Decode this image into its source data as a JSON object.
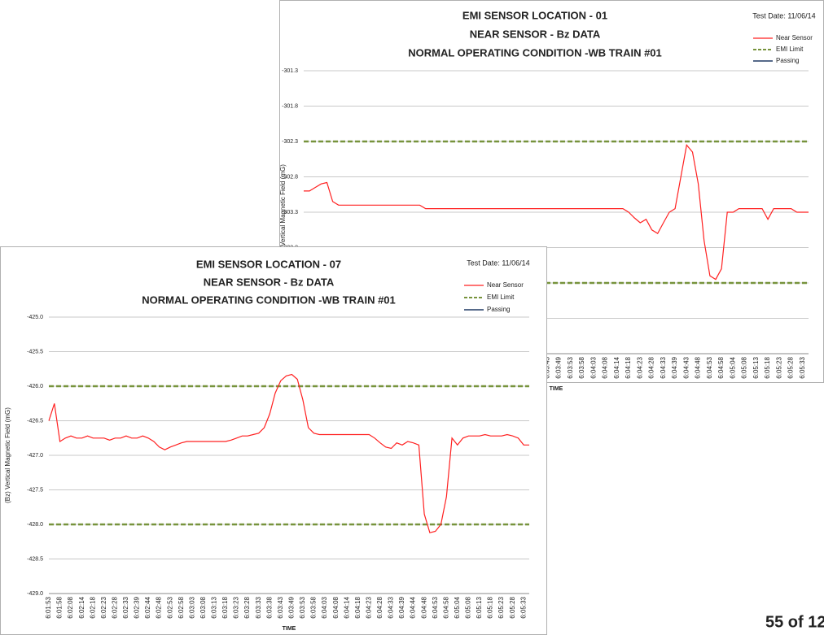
{
  "page_number": "55 of 12",
  "chart_data": [
    {
      "type": "line",
      "title": [
        "EMI SENSOR LOCATION - 01",
        "NEAR SENSOR - Bz DATA",
        "NORMAL OPERATING CONDITION -WB TRAIN #01"
      ],
      "test_date": "Test Date: 11/06/14",
      "y_label": "(Bz) Vertical Magnetic Field (mG)",
      "x_label": "TIME",
      "categories": [
        "6:01:53",
        null,
        "6:01:58",
        null,
        "6:02:08",
        null,
        "6:02:14",
        null,
        "6:02:18",
        null,
        "6:02:23",
        null,
        "6:02:28",
        null,
        "6:02:33",
        null,
        "6:02:39",
        null,
        "6:02:44",
        null,
        "6:02:48",
        null,
        "6:02:53",
        null,
        "6:02:58",
        null,
        "6:03:03",
        null,
        "6:03:08",
        null,
        "6:03:13",
        null,
        "6:03:18",
        null,
        "6:03:23",
        null,
        "6:03:28",
        null,
        "6:03:33",
        null,
        "6:03:38",
        null,
        "6:03:43",
        null,
        "6:03:49",
        null,
        "6:03:53",
        null,
        "6:03:58",
        null,
        "6:04:03",
        null,
        "6:04:08",
        null,
        "6:04:14",
        null,
        "6:04:18",
        null,
        "6:04:23",
        null,
        "6:04:28",
        null,
        "6:04:33",
        null,
        "6:04:39",
        null,
        "6:04:43",
        null,
        "6:04:48",
        null,
        "6:04:53",
        null,
        "6:04:58",
        null,
        "6:05:04",
        null,
        "6:05:08",
        null,
        "6:05:13",
        null,
        "6:05:18",
        null,
        "6:05:23",
        null,
        "6:05:28",
        null,
        "6:05:33",
        null
      ],
      "series": [
        {
          "name": "Near Sensor",
          "color": "#ff2020",
          "values": [
            -303.0,
            -303.0,
            -302.95,
            -302.9,
            -302.88,
            -303.15,
            -303.2,
            -303.2,
            -303.2,
            -303.2,
            -303.2,
            -303.2,
            -303.2,
            -303.2,
            -303.2,
            -303.2,
            -303.2,
            -303.2,
            -303.2,
            -303.2,
            -303.2,
            -303.25,
            -303.25,
            -303.25,
            -303.25,
            -303.25,
            -303.25,
            -303.25,
            -303.25,
            -303.25,
            -303.25,
            -303.25,
            -303.25,
            -303.25,
            -303.25,
            -303.25,
            -303.25,
            -303.25,
            -303.25,
            -303.25,
            -303.25,
            -303.25,
            -303.25,
            -303.25,
            -303.25,
            -303.25,
            -303.25,
            -303.25,
            -303.25,
            -303.25,
            -303.25,
            -303.25,
            -303.25,
            -303.25,
            -303.25,
            -303.25,
            -303.3,
            -303.38,
            -303.45,
            -303.4,
            -303.55,
            -303.6,
            -303.45,
            -303.3,
            -303.25,
            -302.8,
            -302.35,
            -302.45,
            -302.9,
            -303.7,
            -304.2,
            -304.25,
            -304.1,
            -303.3,
            -303.3,
            -303.25,
            -303.25,
            -303.25,
            -303.25,
            -303.25,
            -303.4,
            -303.25,
            -303.25,
            -303.25,
            -303.25,
            -303.3,
            -303.3,
            -303.3
          ]
        }
      ],
      "limit_lines": {
        "name": "EMI Limit",
        "color": "#77933c",
        "values": [
          -302.3,
          -304.3
        ]
      },
      "passing": {
        "name": "Passing",
        "color": "#1f3864"
      },
      "ylim": [
        -305.3,
        -301.3
      ],
      "yticks": [
        -301.3,
        -301.8,
        -302.3,
        -302.8,
        -303.3,
        -303.8,
        -304.3,
        -304.8,
        -305.3
      ],
      "grid": true
    },
    {
      "type": "line",
      "title": [
        "EMI SENSOR LOCATION - 07",
        "NEAR SENSOR - Bz DATA",
        "NORMAL OPERATING CONDITION -WB TRAIN #01"
      ],
      "test_date": "Test Date: 11/06/14",
      "y_label": "(Bz) Vertical Magnetic Field (mG)",
      "x_label": "TIME",
      "categories": [
        "6:01:53",
        null,
        "6:01:58",
        null,
        "6:02:08",
        null,
        "6:02:14",
        null,
        "6:02:18",
        null,
        "6:02:23",
        null,
        "6:02:28",
        null,
        "6:02:33",
        null,
        "6:02:39",
        null,
        "6:02:44",
        null,
        "6:02:48",
        null,
        "6:02:53",
        null,
        "6:02:58",
        null,
        "6:03:03",
        null,
        "6:03:08",
        null,
        "6:03:13",
        null,
        "6:03:18",
        null,
        "6:03:23",
        null,
        "6:03:28",
        null,
        "6:03:33",
        null,
        "6:03:38",
        null,
        "6:03:43",
        null,
        "6:03:49",
        null,
        "6:03:53",
        null,
        "6:03:58",
        null,
        "6:04:03",
        null,
        "6:04:08",
        null,
        "6:04:14",
        null,
        "6:04:18",
        null,
        "6:04:23",
        null,
        "6:04:28",
        null,
        "6:04:33",
        null,
        "6:04:39",
        null,
        "6:04:44",
        null,
        "6:04:48",
        null,
        "6:04:53",
        null,
        "6:04:58",
        null,
        "6:05:04",
        null,
        "6:05:08",
        null,
        "6:05:13",
        null,
        "6:05:18",
        null,
        "6:05:23",
        null,
        "6:05:28",
        null,
        "6:05:33",
        null
      ],
      "series": [
        {
          "name": "Near Sensor",
          "color": "#ff2020",
          "values": [
            -426.5,
            -426.25,
            -426.8,
            -426.75,
            -426.72,
            -426.75,
            -426.75,
            -426.72,
            -426.75,
            -426.75,
            -426.75,
            -426.78,
            -426.75,
            -426.75,
            -426.72,
            -426.75,
            -426.75,
            -426.72,
            -426.75,
            -426.8,
            -426.88,
            -426.92,
            -426.88,
            -426.85,
            -426.82,
            -426.8,
            -426.8,
            -426.8,
            -426.8,
            -426.8,
            -426.8,
            -426.8,
            -426.8,
            -426.78,
            -426.75,
            -426.72,
            -426.72,
            -426.7,
            -426.68,
            -426.6,
            -426.4,
            -426.1,
            -425.92,
            -425.85,
            -425.83,
            -425.9,
            -426.2,
            -426.6,
            -426.68,
            -426.7,
            -426.7,
            -426.7,
            -426.7,
            -426.7,
            -426.7,
            -426.7,
            -426.7,
            -426.7,
            -426.7,
            -426.75,
            -426.82,
            -426.88,
            -426.9,
            -426.82,
            -426.85,
            -426.8,
            -426.82,
            -426.85,
            -427.85,
            -428.12,
            -428.1,
            -428.0,
            -427.6,
            -426.75,
            -426.85,
            -426.75,
            -426.72,
            -426.72,
            -426.72,
            -426.7,
            -426.72,
            -426.72,
            -426.72,
            -426.7,
            -426.72,
            -426.75,
            -426.85,
            -426.85
          ]
        }
      ],
      "limit_lines": {
        "name": "EMI Limit",
        "color": "#77933c",
        "values": [
          -426.0,
          -428.0
        ]
      },
      "passing": {
        "name": "Passing",
        "color": "#1f3864"
      },
      "ylim": [
        -429.0,
        -425.0
      ],
      "yticks": [
        {
          "value": -425.0,
          "label": "-425.0"
        },
        {
          "value": -425.5,
          "label": "-425.5"
        },
        {
          "value": -426.0,
          "label": "-426.0"
        },
        {
          "value": -426.5,
          "label": "-426.5"
        },
        {
          "value": -427.0,
          "label": "-427.0"
        },
        {
          "value": -427.5,
          "label": "-427.5"
        },
        {
          "value": -428.0,
          "label": "-428.0"
        },
        {
          "value": -428.5,
          "label": "-428.5"
        },
        {
          "value": -429.0,
          "label": "-429.0"
        }
      ],
      "grid": true
    }
  ]
}
